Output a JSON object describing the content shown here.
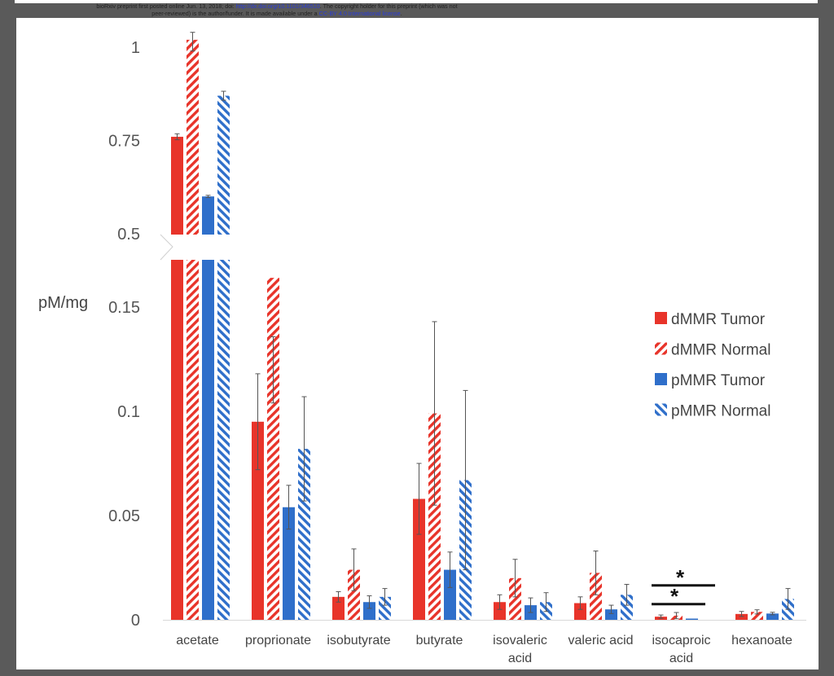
{
  "header": {
    "line1_prefix": "bioRxiv preprint first posted online Jun. 13, 2018; doi: ",
    "line1_link": "http://dx.doi.org/10.1101/346510",
    "line1_suffix": ". The copyright holder for this preprint (which was not",
    "line2_prefix": "peer-reviewed) is the author/funder. It is made available under a ",
    "line2_link": "CC-BY 4.0 International license",
    "line2_suffix": "."
  },
  "chart_data": {
    "type": "bar",
    "title": "",
    "xlabel": "",
    "ylabel": "pM/mg",
    "broken_axis": true,
    "upper_ylim": [
      0.5,
      1.0
    ],
    "upper_ticks": [
      "0.5",
      "0.75",
      "1"
    ],
    "upper_tick_values": [
      0.5,
      0.75,
      1.0
    ],
    "lower_ylim": [
      0,
      0.17
    ],
    "lower_ticks": [
      "0",
      "0.05",
      "0.1",
      "0.15"
    ],
    "lower_tick_values": [
      0,
      0.05,
      0.1,
      0.15
    ],
    "categories": [
      "acetate",
      "proprionate",
      "isobutyrate",
      "butyrate",
      "isovaleric acid",
      "valeric acid",
      "isocaproic acid",
      "hexanoate"
    ],
    "category_lines": [
      [
        "acetate"
      ],
      [
        "proprionate"
      ],
      [
        "isobutyrate"
      ],
      [
        "butyrate"
      ],
      [
        "isovaleric",
        "acid"
      ],
      [
        "valeric acid"
      ],
      [
        "isocaproic",
        "acid"
      ],
      [
        "hexanoate"
      ]
    ],
    "series": [
      {
        "name": "dMMR Tumor",
        "color": "#e8342a",
        "pattern": "solid",
        "values": [
          0.76,
          0.095,
          0.011,
          0.058,
          0.0085,
          0.008,
          0.0015,
          0.0028
        ],
        "errors": [
          0.008,
          0.023,
          0.0025,
          0.017,
          0.0035,
          0.003,
          0.0008,
          0.0012
        ]
      },
      {
        "name": "dMMR Normal",
        "color": "#e8342a",
        "pattern": "hatch",
        "values": [
          1.02,
          0.164,
          0.024,
          0.099,
          0.02,
          0.0225,
          0.002,
          0.0038
        ],
        "errors": [
          0.03,
          0.06,
          0.01,
          0.044,
          0.009,
          0.0105,
          0.0015,
          0.001
        ]
      },
      {
        "name": "pMMR Tumor",
        "color": "#2f6fca",
        "pattern": "solid",
        "values": [
          0.6,
          0.054,
          0.0085,
          0.024,
          0.007,
          0.005,
          0.0001,
          0.003
        ],
        "errors": [
          0.003,
          0.0105,
          0.003,
          0.0085,
          0.0035,
          0.002,
          0,
          0.0006
        ]
      },
      {
        "name": "pMMR Normal",
        "color": "#2f6fca",
        "pattern": "hatch",
        "values": [
          0.87,
          0.082,
          0.011,
          0.067,
          0.0085,
          0.012,
          0,
          0.01
        ],
        "errors": [
          0.012,
          0.025,
          0.004,
          0.043,
          0.0045,
          0.005,
          0,
          0.005
        ]
      }
    ],
    "significance": [
      {
        "category": "isocaproic acid",
        "label": "*",
        "y": 0.0165,
        "span": "wide"
      },
      {
        "category": "isocaproic acid",
        "label": "*",
        "y": 0.0075,
        "span": "narrow"
      }
    ],
    "legend_position": "right"
  }
}
